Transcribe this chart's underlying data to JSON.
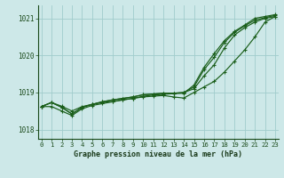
{
  "title": "Graphe pression niveau de la mer (hPa)",
  "bg_color": "#cde8e8",
  "grid_color": "#a0cccc",
  "line_color": "#1a5e1a",
  "ylim": [
    1017.75,
    1021.35
  ],
  "yticks": [
    1018,
    1019,
    1020,
    1021
  ],
  "xlim": [
    -0.3,
    23.3
  ],
  "x_ticks": [
    0,
    1,
    2,
    3,
    4,
    5,
    6,
    7,
    8,
    9,
    10,
    11,
    12,
    13,
    14,
    15,
    16,
    17,
    18,
    19,
    20,
    21,
    22,
    23
  ],
  "lines": [
    [
      1018.62,
      1018.73,
      1018.63,
      1018.5,
      1018.62,
      1018.68,
      1018.73,
      1018.76,
      1018.8,
      1018.84,
      1018.88,
      1018.9,
      1018.92,
      1018.88,
      1018.85,
      1019.0,
      1019.15,
      1019.3,
      1019.55,
      1019.85,
      1020.15,
      1020.5,
      1020.9,
      1021.05
    ],
    [
      1018.62,
      1018.73,
      1018.6,
      1018.42,
      1018.6,
      1018.68,
      1018.75,
      1018.8,
      1018.84,
      1018.88,
      1018.94,
      1018.96,
      1018.98,
      1018.98,
      1019.0,
      1019.1,
      1019.45,
      1019.75,
      1020.2,
      1020.55,
      1020.75,
      1020.9,
      1021.0,
      1021.05
    ],
    [
      1018.62,
      1018.73,
      1018.6,
      1018.42,
      1018.6,
      1018.68,
      1018.75,
      1018.8,
      1018.84,
      1018.88,
      1018.94,
      1018.96,
      1018.98,
      1018.98,
      1019.0,
      1019.15,
      1019.62,
      1019.95,
      1020.35,
      1020.62,
      1020.8,
      1020.95,
      1021.02,
      1021.08
    ],
    [
      1018.62,
      1018.62,
      1018.5,
      1018.38,
      1018.56,
      1018.65,
      1018.7,
      1018.75,
      1018.8,
      1018.84,
      1018.9,
      1018.93,
      1018.95,
      1018.97,
      1018.98,
      1019.2,
      1019.68,
      1020.05,
      1020.4,
      1020.65,
      1020.82,
      1021.0,
      1021.05,
      1021.1
    ]
  ]
}
